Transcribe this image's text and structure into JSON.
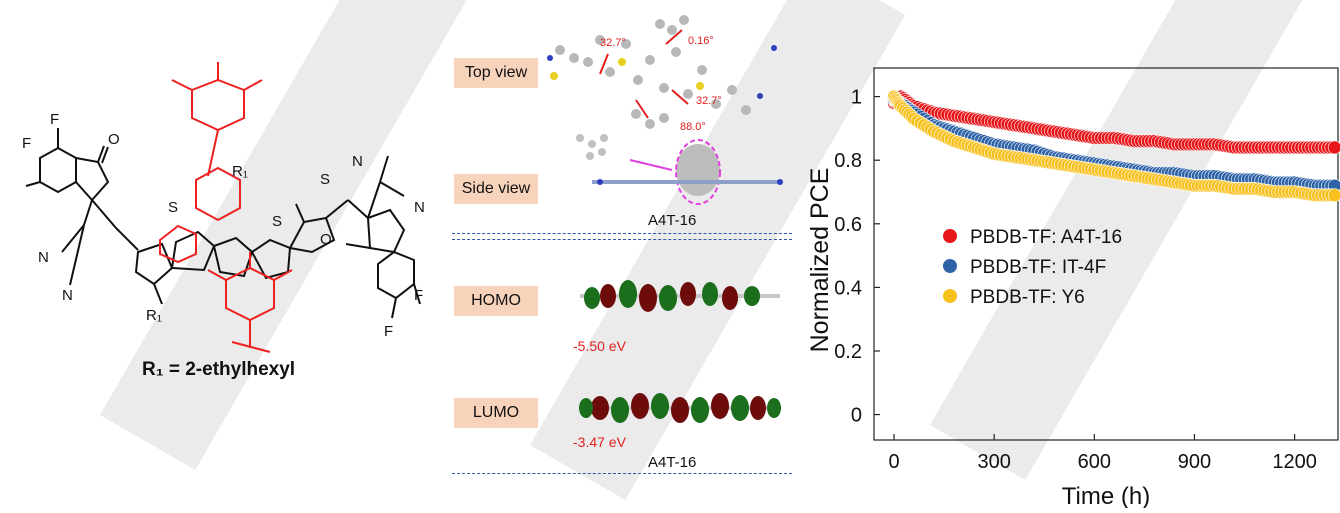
{
  "panel_a": {
    "r1_definition": "R₁ = 2-ethylhexyl",
    "atom_labels": {
      "F": "F",
      "N": "N",
      "O": "O",
      "S": "S",
      "CN": "N",
      "R1": "R₁"
    }
  },
  "panel_b": {
    "top_view_label": "Top view",
    "side_view_label": "Side view",
    "homo_label": "HOMO",
    "lumo_label": "LUMO",
    "molecule_name_top": "A4T-16",
    "molecule_name_bottom": "A4T-16",
    "homo_energy": "-5.50 eV",
    "lumo_energy": "-3.47 eV",
    "angles": [
      "32.7°",
      "0.16°",
      "32.7°",
      "88.0°"
    ]
  },
  "chart_data": {
    "type": "scatter",
    "ylabel": "Normalized PCE",
    "xlabel": "Time (h)",
    "xlim": [
      -60,
      1330
    ],
    "ylim": [
      -0.08,
      1.09
    ],
    "xticks": [
      0,
      300,
      600,
      900,
      1200
    ],
    "yticks": [
      0,
      0.2,
      0.4,
      0.6,
      0.8,
      1
    ],
    "ytick_labels": [
      "0",
      "0.2",
      "0.4",
      "0.6",
      "0.8",
      "1"
    ],
    "legend_position": "center-left",
    "series": [
      {
        "name": "PBDB-TF: A4T-16",
        "color": "#e8161a",
        "points": [
          [
            0,
            0.98
          ],
          [
            20,
            1.0
          ],
          [
            60,
            0.97
          ],
          [
            120,
            0.95
          ],
          [
            180,
            0.94
          ],
          [
            240,
            0.93
          ],
          [
            300,
            0.92
          ],
          [
            360,
            0.91
          ],
          [
            420,
            0.9
          ],
          [
            480,
            0.89
          ],
          [
            540,
            0.88
          ],
          [
            600,
            0.87
          ],
          [
            660,
            0.87
          ],
          [
            720,
            0.86
          ],
          [
            780,
            0.86
          ],
          [
            840,
            0.85
          ],
          [
            900,
            0.85
          ],
          [
            960,
            0.85
          ],
          [
            1020,
            0.84
          ],
          [
            1080,
            0.84
          ],
          [
            1140,
            0.84
          ],
          [
            1200,
            0.84
          ],
          [
            1260,
            0.84
          ],
          [
            1320,
            0.84
          ]
        ]
      },
      {
        "name": "PBDB-TF: IT-4F",
        "color": "#2f63a8",
        "points": [
          [
            0,
            0.99
          ],
          [
            20,
            0.98
          ],
          [
            60,
            0.95
          ],
          [
            120,
            0.91
          ],
          [
            180,
            0.89
          ],
          [
            240,
            0.87
          ],
          [
            300,
            0.85
          ],
          [
            360,
            0.84
          ],
          [
            420,
            0.83
          ],
          [
            480,
            0.81
          ],
          [
            540,
            0.8
          ],
          [
            600,
            0.79
          ],
          [
            660,
            0.78
          ],
          [
            720,
            0.77
          ],
          [
            780,
            0.76
          ],
          [
            840,
            0.76
          ],
          [
            900,
            0.75
          ],
          [
            960,
            0.75
          ],
          [
            1020,
            0.74
          ],
          [
            1080,
            0.74
          ],
          [
            1140,
            0.73
          ],
          [
            1200,
            0.73
          ],
          [
            1260,
            0.72
          ],
          [
            1320,
            0.72
          ]
        ]
      },
      {
        "name": "PBDB-TF: Y6",
        "color": "#f7c01c",
        "points": [
          [
            0,
            1.0
          ],
          [
            20,
            0.97
          ],
          [
            60,
            0.93
          ],
          [
            120,
            0.89
          ],
          [
            180,
            0.86
          ],
          [
            240,
            0.84
          ],
          [
            300,
            0.82
          ],
          [
            360,
            0.81
          ],
          [
            420,
            0.8
          ],
          [
            480,
            0.79
          ],
          [
            540,
            0.78
          ],
          [
            600,
            0.77
          ],
          [
            660,
            0.76
          ],
          [
            720,
            0.75
          ],
          [
            780,
            0.74
          ],
          [
            840,
            0.73
          ],
          [
            900,
            0.72
          ],
          [
            960,
            0.72
          ],
          [
            1020,
            0.71
          ],
          [
            1080,
            0.71
          ],
          [
            1140,
            0.7
          ],
          [
            1200,
            0.7
          ],
          [
            1260,
            0.69
          ],
          [
            1320,
            0.69
          ]
        ]
      }
    ]
  }
}
